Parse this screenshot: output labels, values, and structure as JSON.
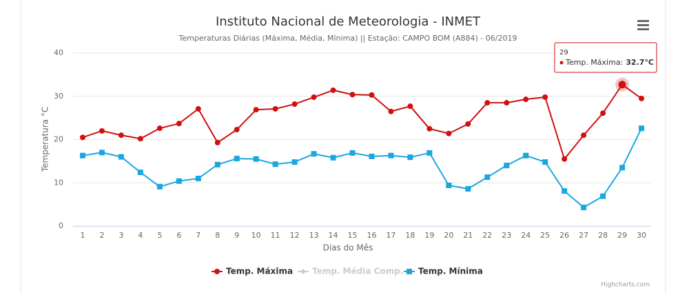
{
  "chart_data": {
    "type": "line",
    "title": "Instituto Nacional de Meteorologia - INMET",
    "subtitle": "Temperaturas Diárias (Máxima, Média, Mínima) || Estação: CAMPO BOM (A884) - 06/2019",
    "x_label": "Dias do Mês",
    "y_label": "Temperatura °C",
    "categories": [
      "1",
      "2",
      "3",
      "4",
      "5",
      "6",
      "7",
      "8",
      "9",
      "10",
      "11",
      "12",
      "13",
      "14",
      "15",
      "16",
      "17",
      "18",
      "19",
      "20",
      "21",
      "22",
      "23",
      "24",
      "25",
      "26",
      "27",
      "28",
      "29",
      "30"
    ],
    "series": [
      {
        "name": "Temp. Máxima",
        "color": "#d10f0f",
        "marker": "circle",
        "values": [
          20.5,
          22,
          21,
          20.2,
          22.6,
          23.7,
          27.1,
          19.3,
          22.3,
          26.9,
          27.1,
          28.2,
          29.8,
          31.4,
          30.4,
          30.3,
          26.5,
          27.7,
          22.5,
          21.4,
          23.6,
          28.5,
          28.5,
          29.3,
          29.8,
          15.5,
          21,
          26.1,
          32.7,
          29.5
        ]
      },
      {
        "name": "Temp. Média Comp.",
        "color": "#cccccc",
        "marker": "diamond",
        "visible": false
      },
      {
        "name": "Temp. Mínima",
        "color": "#1aa7e0",
        "marker": "square",
        "values": [
          16.3,
          17,
          16,
          12.4,
          9.1,
          10.4,
          11,
          14.2,
          15.6,
          15.5,
          14.3,
          14.8,
          16.7,
          15.8,
          16.9,
          16.1,
          16.3,
          15.9,
          16.9,
          9.4,
          8.6,
          11.3,
          14,
          16.3,
          14.8,
          8.1,
          4.3,
          6.9,
          13.5,
          22.6
        ]
      }
    ],
    "ylim": [
      0,
      40
    ],
    "yticks": [
      0,
      10,
      20,
      30,
      40
    ],
    "grid": true,
    "legend": "bottom",
    "tooltip": {
      "header": "29",
      "label": "Temp. Máxima:",
      "value_label": "32.7°C"
    },
    "credits": "Highcharts.com"
  }
}
